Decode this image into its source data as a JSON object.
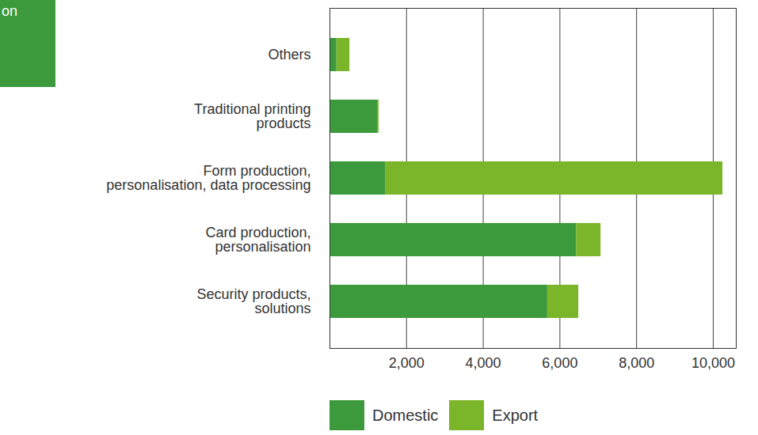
{
  "chart_data": {
    "type": "bar",
    "title": "on",
    "orientation": "horizontal",
    "stacked": true,
    "categories": [
      "Others",
      "Traditional printing products",
      "Form production, personalisation, data processing",
      "Card production, personalisation",
      "Security products, solutions"
    ],
    "series": [
      {
        "name": "Domestic",
        "color": "#3c9a3c",
        "values": [
          180,
          1240,
          1460,
          6430,
          5680
        ]
      },
      {
        "name": "Export",
        "color": "#7ab52a",
        "values": [
          340,
          40,
          8790,
          640,
          810
        ]
      }
    ],
    "xlim": [
      0,
      10600
    ],
    "xticks": [
      {
        "value": 2000,
        "label": "2,000"
      },
      {
        "value": 4000,
        "label": "4,000"
      },
      {
        "value": 6000,
        "label": "6,000"
      },
      {
        "value": 8000,
        "label": "8,000"
      },
      {
        "value": 10000,
        "label": "10,000"
      }
    ],
    "grid": true,
    "legend": "bottom"
  }
}
